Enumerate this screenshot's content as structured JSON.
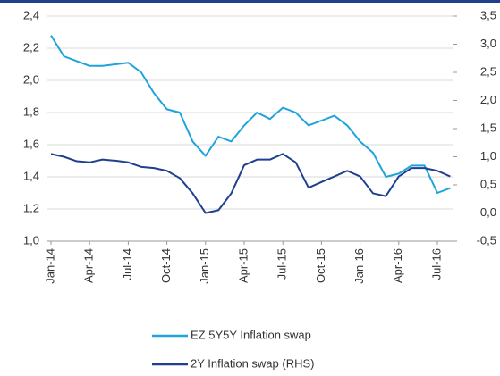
{
  "chart_data": {
    "type": "line",
    "categories": [
      "Jan-14",
      null,
      null,
      "Apr-14",
      null,
      null,
      "Jul-14",
      null,
      null,
      "Oct-14",
      null,
      null,
      "Jan-15",
      null,
      null,
      "Apr-15",
      null,
      null,
      "Jul-15",
      null,
      null,
      "Oct-15",
      null,
      null,
      "Jan-16",
      null,
      null,
      "Apr-16",
      null,
      null,
      "Jul-16",
      null
    ],
    "series": [
      {
        "name": "EZ 5Y5Y Inflation swap",
        "color": "#1fa3dc",
        "values": [
          2.28,
          2.15,
          2.12,
          2.09,
          2.09,
          2.1,
          2.11,
          2.05,
          1.92,
          1.82,
          1.8,
          1.62,
          1.53,
          1.65,
          1.62,
          1.72,
          1.8,
          1.76,
          1.83,
          1.8,
          1.72,
          1.75,
          1.78,
          1.72,
          1.62,
          1.55,
          1.4,
          1.42,
          1.47,
          1.47,
          1.3,
          1.33
        ]
      },
      {
        "name": "2Y Inflation swap (RHS)",
        "color": "#1f3f8f",
        "axis": "y2",
        "values": [
          1.05,
          1.0,
          0.92,
          0.9,
          0.95,
          0.93,
          0.9,
          0.82,
          0.8,
          0.75,
          0.62,
          0.35,
          0.0,
          0.05,
          0.35,
          0.85,
          0.95,
          0.95,
          1.05,
          0.9,
          0.45,
          0.55,
          0.65,
          0.75,
          0.65,
          0.35,
          0.3,
          0.65,
          0.8,
          0.8,
          0.75,
          0.65
        ]
      }
    ],
    "ylim": [
      1.0,
      2.4
    ],
    "yticks": [
      {
        "value": 1.0,
        "label": "1,0"
      },
      {
        "value": 1.2,
        "label": "1,2"
      },
      {
        "value": 1.4,
        "label": "1,4"
      },
      {
        "value": 1.6,
        "label": "1,6"
      },
      {
        "value": 1.8,
        "label": "1,8"
      },
      {
        "value": 2.0,
        "label": "2,0"
      },
      {
        "value": 2.2,
        "label": "2,2"
      },
      {
        "value": 2.4,
        "label": "2,4"
      }
    ],
    "y2lim": [
      -0.5,
      3.5
    ],
    "y2ticks": [
      {
        "value": -0.5,
        "label": "-0,5"
      },
      {
        "value": 0,
        "label": "0,0"
      },
      {
        "value": 0.5,
        "label": "0,5"
      },
      {
        "value": 1.0,
        "label": "1,0"
      },
      {
        "value": 1.5,
        "label": "1,5"
      },
      {
        "value": 2.0,
        "label": "2,0"
      },
      {
        "value": 2.5,
        "label": "2,5"
      },
      {
        "value": 3.0,
        "label": "3,0"
      },
      {
        "value": 3.5,
        "label": "3,5"
      }
    ],
    "grid": true
  }
}
